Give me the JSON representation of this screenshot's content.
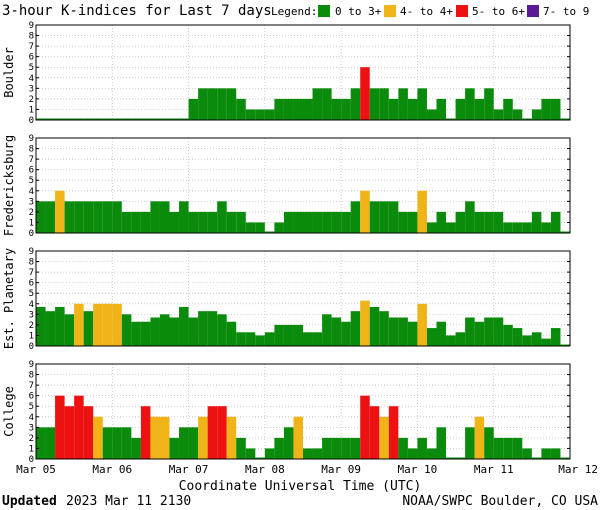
{
  "header": {
    "title": "3-hour K-indices for Last 7 days",
    "legend_label": "Legend:",
    "legend": [
      {
        "label": "0 to 3+",
        "color": "#0b8b0b"
      },
      {
        "label": "4- to 4+",
        "color": "#f0b418"
      },
      {
        "label": "5- to 6+",
        "color": "#ee1111"
      },
      {
        "label": "7- to 9",
        "color": "#5a1a96"
      }
    ]
  },
  "footer": {
    "updated_label": "Updated",
    "updated_value": "2023 Mar 11 2130",
    "source": "NOAA/SWPC Boulder, CO USA"
  },
  "colors": {
    "green": "#0b8b0b",
    "yellow": "#f0b418",
    "red": "#ee1111",
    "purple": "#5a1a96"
  },
  "chart_data": {
    "type": "bar",
    "xlabel": "Coordinate Universal Time (UTC)",
    "x_ticks": [
      "Mar 05",
      "Mar 06",
      "Mar 07",
      "Mar 08",
      "Mar 09",
      "Mar 10",
      "Mar 11",
      "Mar 12"
    ],
    "ylim": [
      0,
      9
    ],
    "y_ticks": [
      "0",
      "1",
      "2",
      "3",
      "4",
      "5",
      "6",
      "7",
      "8",
      "9"
    ],
    "intervals_per_day": 8,
    "panels": [
      {
        "name": "Boulder",
        "values": [
          0,
          0,
          0,
          0,
          0,
          0,
          0,
          0,
          0,
          0,
          0,
          0,
          0,
          0,
          0,
          0,
          2,
          3,
          3,
          3,
          3,
          2,
          1,
          1,
          1,
          2,
          2,
          2,
          2,
          3,
          3,
          2,
          2,
          3,
          5,
          3,
          3,
          2,
          3,
          2,
          3,
          1,
          2,
          0,
          2,
          3,
          2,
          3,
          1,
          2,
          1,
          0,
          1,
          2,
          2,
          0
        ]
      },
      {
        "name": "Fredericksburg",
        "values": [
          3,
          3,
          4,
          3,
          3,
          3,
          3,
          3,
          3,
          2,
          2,
          2,
          3,
          3,
          2,
          3,
          2,
          2,
          2,
          3,
          2,
          2,
          1,
          1,
          0,
          1,
          2,
          2,
          2,
          2,
          2,
          2,
          2,
          3,
          4,
          3,
          3,
          3,
          2,
          2,
          4,
          1,
          2,
          1,
          2,
          3,
          2,
          2,
          2,
          1,
          1,
          1,
          2,
          1,
          2,
          0
        ]
      },
      {
        "name": "Est. Planetary",
        "values": [
          3.7,
          3.3,
          3.7,
          3.0,
          4.0,
          3.3,
          4.0,
          4.0,
          4.0,
          3.0,
          2.3,
          2.3,
          2.7,
          3.0,
          2.7,
          3.7,
          2.7,
          3.3,
          3.3,
          3.0,
          2.3,
          1.3,
          1.3,
          1.0,
          1.3,
          2.0,
          2.0,
          2.0,
          1.3,
          1.3,
          3.0,
          2.7,
          2.3,
          3.3,
          4.3,
          3.7,
          3.3,
          2.7,
          2.7,
          2.3,
          4.0,
          1.7,
          2.3,
          1.0,
          1.3,
          2.7,
          2.3,
          2.7,
          2.7,
          2.0,
          1.7,
          1.0,
          1.3,
          0.7,
          1.7,
          0
        ]
      },
      {
        "name": "College",
        "values": [
          3,
          3,
          6,
          5,
          6,
          5,
          4,
          3,
          3,
          3,
          2,
          5,
          4,
          4,
          2,
          3,
          3,
          4,
          5,
          5,
          4,
          2,
          1,
          0,
          1,
          2,
          3,
          4,
          1,
          1,
          2,
          2,
          2,
          2,
          6,
          5,
          4,
          5,
          2,
          1,
          2,
          1,
          3,
          0,
          0,
          3,
          4,
          3,
          2,
          2,
          2,
          1,
          0,
          1,
          1,
          0
        ]
      }
    ]
  }
}
